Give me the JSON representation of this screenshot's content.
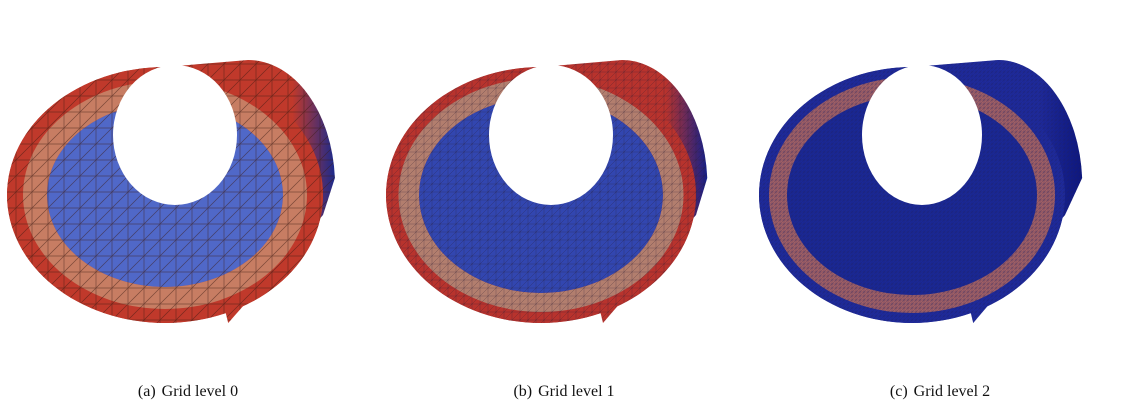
{
  "figure": {
    "panels": [
      {
        "label": "(a)",
        "caption": "Grid level 0",
        "mesh_resolution": "coarse",
        "colors": {
          "outer": "#c0392b",
          "ring": "#c8896d",
          "inner": "#5068c8",
          "shadow": "#1c2a8c",
          "edge": "#3a1a12"
        }
      },
      {
        "label": "(b)",
        "caption": "Grid level 1",
        "mesh_resolution": "medium",
        "colors": {
          "outer": "#b8332d",
          "ring": "#b08c7a",
          "inner": "#3246b0",
          "shadow": "#14208a",
          "edge": "#2a1c30"
        }
      },
      {
        "label": "(c)",
        "caption": "Grid level 2",
        "mesh_resolution": "fine",
        "colors": {
          "outer": "#1e2a9c",
          "ring": "#b86a5c",
          "inner": "#1a2896",
          "shadow": "#0c1680",
          "edge": "#202060"
        }
      }
    ]
  }
}
